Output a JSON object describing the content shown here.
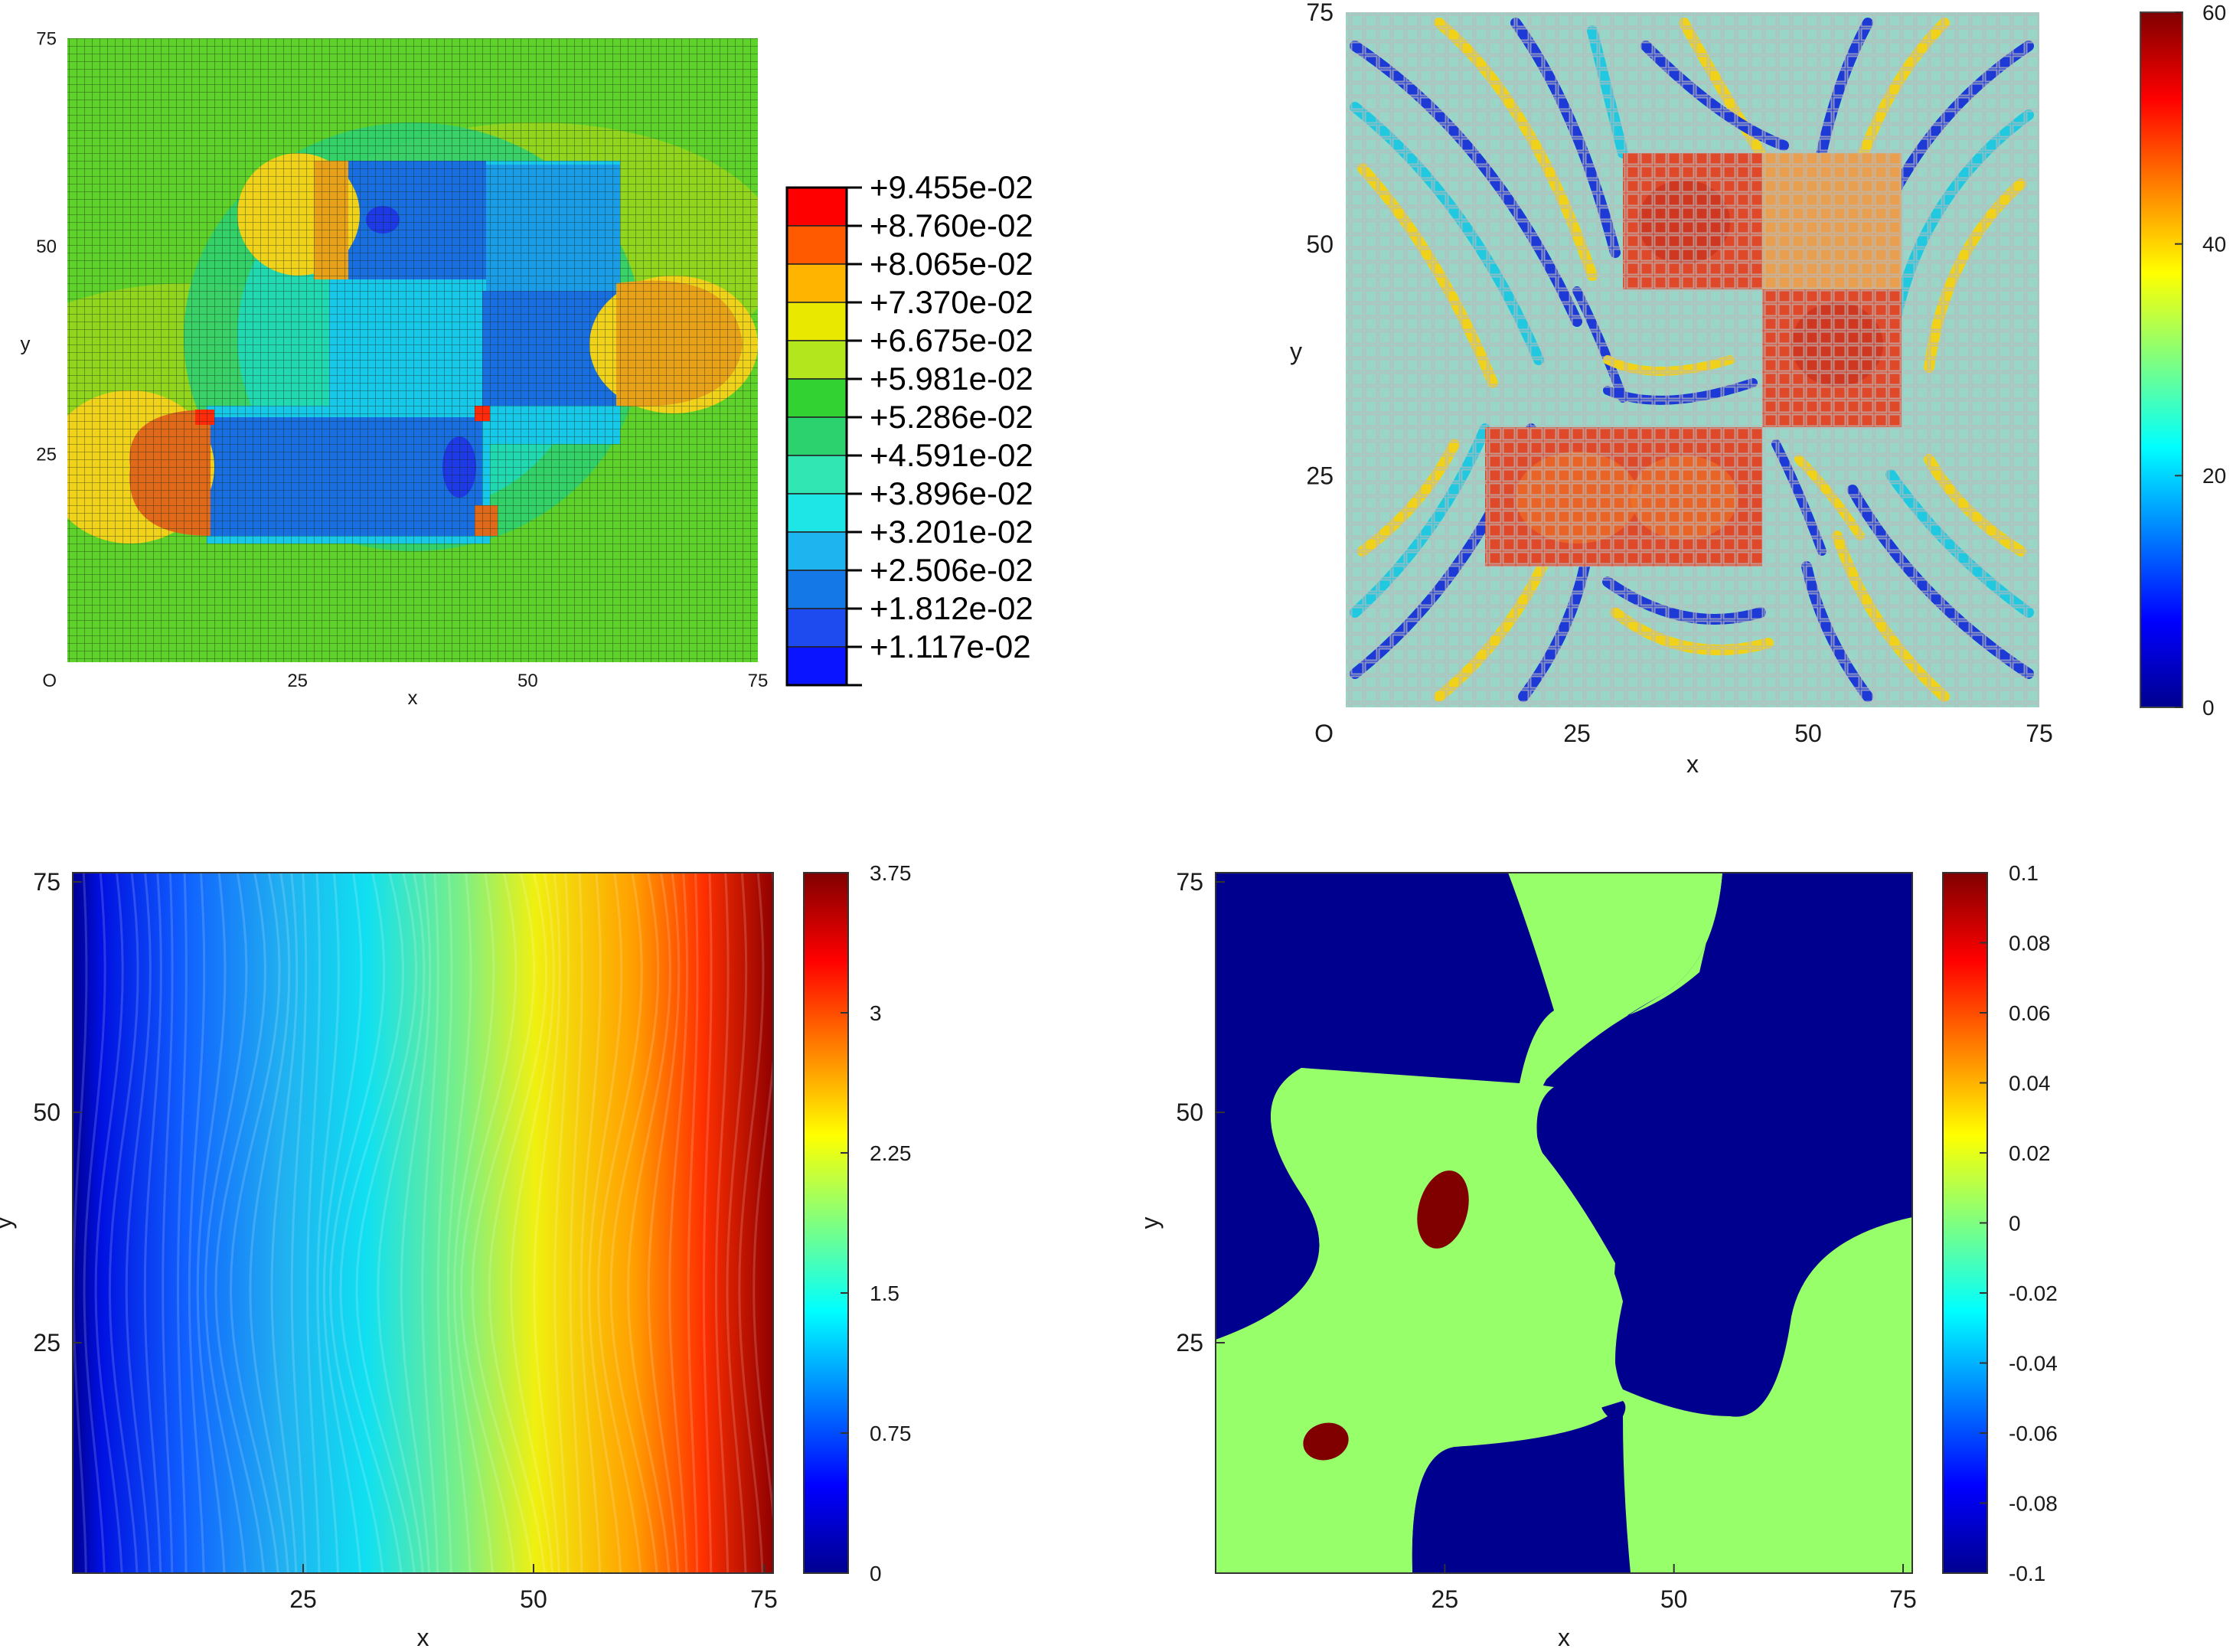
{
  "chart_data": [
    {
      "type": "heatmap",
      "panel": "top-left",
      "xlabel": "x",
      "ylabel": "y",
      "xlim": [
        0,
        75
      ],
      "ylim": [
        0,
        75
      ],
      "origin_label": "O",
      "x_ticks": [
        25,
        50,
        75
      ],
      "x_tick_labels": [
        "25",
        "50",
        "75"
      ],
      "y_ticks": [
        25,
        50,
        75
      ],
      "y_tick_labels": [
        "25",
        "50",
        "75"
      ],
      "grid": true,
      "legend_position": "right",
      "legend_colors": [
        "#ff0000",
        "#ff5a00",
        "#ffb400",
        "#e8e800",
        "#b4e61e",
        "#32d232",
        "#2cd26e",
        "#32e6b4",
        "#1ee6e6",
        "#1eb4f0",
        "#1478e6",
        "#1e4bf0",
        "#0a14ff"
      ],
      "legend_labels": [
        "+9.455e-02",
        "+8.760e-02",
        "+8.065e-02",
        "+7.370e-02",
        "+6.675e-02",
        "+5.981e-02",
        "+5.286e-02",
        "+4.591e-02",
        "+3.896e-02",
        "+3.201e-02",
        "+2.506e-02",
        "+1.812e-02",
        "+1.117e-02"
      ]
    },
    {
      "type": "heatmap",
      "panel": "top-right",
      "xlabel": "x",
      "ylabel": "y",
      "xlim": [
        0,
        75
      ],
      "ylim": [
        0,
        75
      ],
      "origin_label": "O",
      "x_ticks": [
        25,
        50,
        75
      ],
      "x_tick_labels": [
        "25",
        "50",
        "75"
      ],
      "y_ticks": [
        25,
        50,
        75
      ],
      "y_tick_labels": [
        "25",
        "50",
        "75"
      ],
      "colorbar": {
        "min": 0,
        "max": 60,
        "ticks": [
          0,
          20,
          40,
          60
        ],
        "tick_labels": [
          "0",
          "20",
          "40",
          "60"
        ],
        "colormap": "jet"
      }
    },
    {
      "type": "heatmap",
      "panel": "bottom-left",
      "xlabel": "x",
      "ylabel": "y",
      "xlim": [
        0,
        76
      ],
      "ylim": [
        0,
        76
      ],
      "x_ticks": [
        25,
        50,
        75
      ],
      "x_tick_labels": [
        "25",
        "50",
        "75"
      ],
      "y_ticks": [
        25,
        50,
        75
      ],
      "y_tick_labels": [
        "25",
        "50",
        "75"
      ],
      "colorbar": {
        "min": 0,
        "max": 3.75,
        "ticks": [
          0,
          0.75,
          1.5,
          2.25,
          3,
          3.75
        ],
        "tick_labels": [
          "0",
          "0.75",
          "1.5",
          "2.25",
          "3",
          "3.75"
        ],
        "colormap": "jet"
      }
    },
    {
      "type": "heatmap",
      "panel": "bottom-right",
      "xlabel": "x",
      "ylabel": "y",
      "xlim": [
        0,
        76
      ],
      "ylim": [
        0,
        76
      ],
      "x_ticks": [
        25,
        50,
        75
      ],
      "x_tick_labels": [
        "25",
        "50",
        "75"
      ],
      "y_ticks": [
        25,
        50,
        75
      ],
      "y_tick_labels": [
        "25",
        "50",
        "75"
      ],
      "colorbar": {
        "min": -0.1,
        "max": 0.1,
        "ticks": [
          -0.1,
          -0.08,
          -0.06,
          -0.04,
          -0.02,
          0,
          0.02,
          0.04,
          0.06,
          0.08,
          0.1
        ],
        "tick_labels": [
          "-0.1",
          "-0.08",
          "-0.06",
          "-0.04",
          "-0.02",
          "0",
          "0.02",
          "0.04",
          "0.06",
          "0.08",
          "0.1"
        ],
        "colormap": "jet"
      }
    }
  ]
}
